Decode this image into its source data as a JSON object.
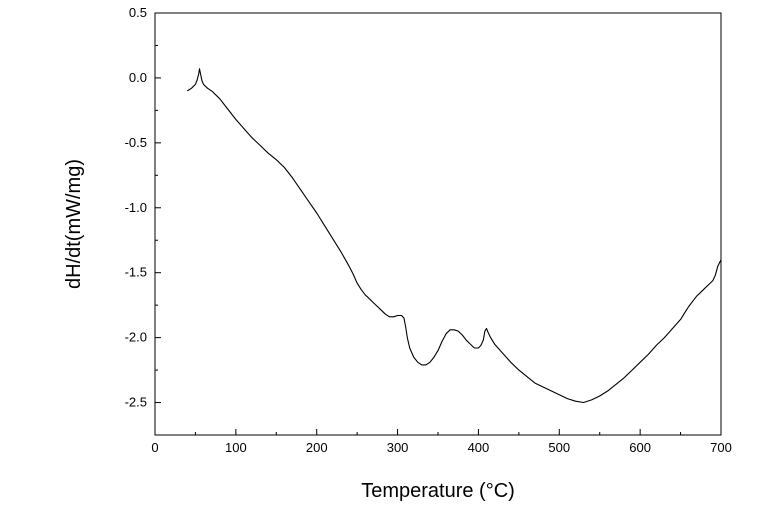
{
  "chart_data": {
    "type": "line",
    "xlabel": "Temperature (°C)",
    "ylabel": "dH/dt(mW/mg)",
    "xlim": [
      0,
      700
    ],
    "ylim": [
      -2.75,
      0.5
    ],
    "xticks": [
      0,
      100,
      200,
      300,
      400,
      500,
      600,
      700
    ],
    "yticks": [
      0.5,
      0.0,
      -0.5,
      -1.0,
      -1.5,
      -2.0,
      -2.5
    ],
    "xtick_labels": [
      "0",
      "100",
      "200",
      "300",
      "400",
      "500",
      "600",
      "700"
    ],
    "ytick_labels": [
      "0.5",
      "0.0",
      "-0.5",
      "-1.0",
      "-1.5",
      "-2.0",
      "-2.5"
    ],
    "grid": false,
    "legend": "none",
    "line_color": "#000000",
    "series": [
      {
        "x": [
          40,
          45,
          50,
          52,
          54,
          55,
          56,
          58,
          60,
          65,
          70,
          80,
          90,
          100,
          110,
          120,
          130,
          140,
          150,
          160,
          170,
          180,
          190,
          200,
          210,
          220,
          230,
          240,
          245,
          250,
          255,
          260,
          265,
          270,
          275,
          280,
          285,
          290,
          295,
          300,
          305,
          308,
          310,
          312,
          315,
          320,
          325,
          330,
          335,
          340,
          345,
          350,
          355,
          360,
          365,
          370,
          375,
          380,
          385,
          390,
          395,
          400,
          403,
          406,
          408,
          410,
          412,
          415,
          420,
          430,
          440,
          450,
          460,
          470,
          480,
          490,
          500,
          510,
          520,
          530,
          540,
          550,
          560,
          570,
          580,
          590,
          600,
          610,
          620,
          630,
          640,
          650,
          655,
          660,
          665,
          670,
          675,
          680,
          685,
          690,
          693,
          696,
          700
        ],
        "y": [
          -0.1,
          -0.08,
          -0.05,
          -0.02,
          0.03,
          0.07,
          0.04,
          -0.02,
          -0.05,
          -0.08,
          -0.1,
          -0.16,
          -0.24,
          -0.32,
          -0.39,
          -0.46,
          -0.52,
          -0.58,
          -0.63,
          -0.69,
          -0.77,
          -0.86,
          -0.95,
          -1.04,
          -1.14,
          -1.24,
          -1.34,
          -1.45,
          -1.51,
          -1.58,
          -1.63,
          -1.67,
          -1.7,
          -1.73,
          -1.76,
          -1.79,
          -1.82,
          -1.84,
          -1.84,
          -1.83,
          -1.83,
          -1.85,
          -1.92,
          -2.0,
          -2.08,
          -2.15,
          -2.19,
          -2.21,
          -2.21,
          -2.19,
          -2.15,
          -2.1,
          -2.03,
          -1.97,
          -1.94,
          -1.94,
          -1.95,
          -1.98,
          -2.02,
          -2.05,
          -2.08,
          -2.08,
          -2.06,
          -2.02,
          -1.95,
          -1.93,
          -1.96,
          -2.0,
          -2.05,
          -2.12,
          -2.19,
          -2.25,
          -2.3,
          -2.35,
          -2.38,
          -2.41,
          -2.44,
          -2.47,
          -2.49,
          -2.5,
          -2.48,
          -2.45,
          -2.41,
          -2.36,
          -2.31,
          -2.25,
          -2.19,
          -2.13,
          -2.06,
          -2.0,
          -1.93,
          -1.86,
          -1.81,
          -1.76,
          -1.72,
          -1.68,
          -1.65,
          -1.62,
          -1.59,
          -1.56,
          -1.52,
          -1.45,
          -1.4
        ]
      }
    ]
  }
}
